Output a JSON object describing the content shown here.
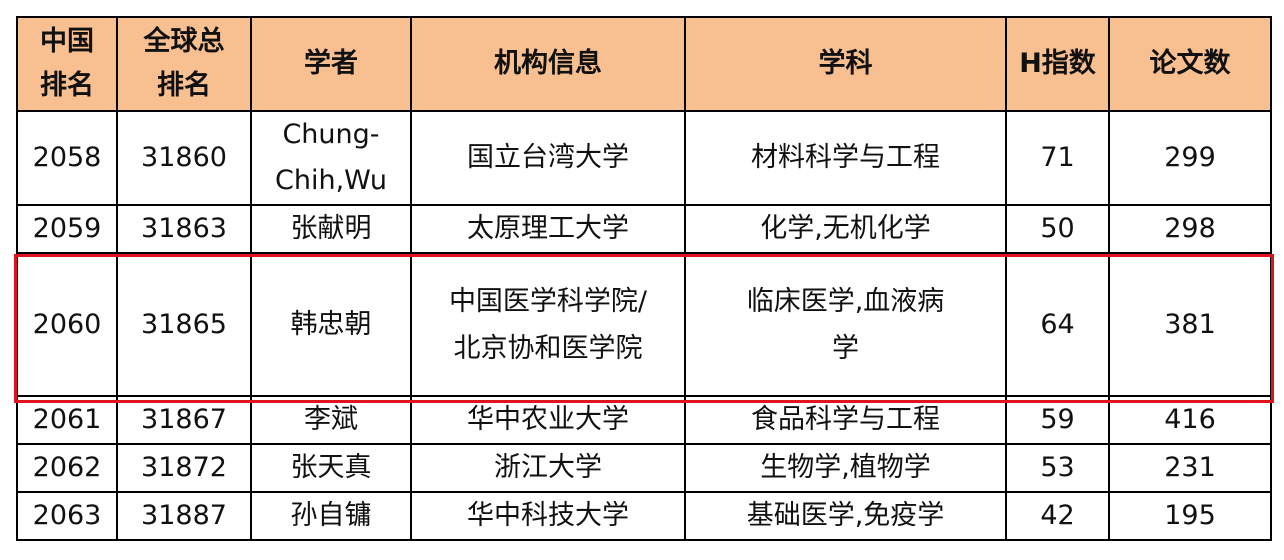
{
  "table": {
    "headers": [
      "中国排名",
      "全球总排名",
      "学者",
      "机构信息",
      "学科",
      "H指数",
      "论文数"
    ],
    "header_lines": [
      [
        "中国",
        "排名"
      ],
      [
        "全球总",
        "排名"
      ],
      [
        "学者"
      ],
      [
        "机构信息"
      ],
      [
        "学科"
      ],
      [
        "H指数"
      ],
      [
        "论文数"
      ]
    ],
    "rows": [
      [
        "2058",
        "31860",
        "Chung-Chih,Wu",
        "国立台湾大学",
        "材料科学与工程",
        "71",
        "299"
      ],
      [
        "2059",
        "31863",
        "张献明",
        "太原理工大学",
        "化学,无机化学",
        "50",
        "298"
      ],
      [
        "2060",
        "31865",
        "韩忠朝",
        "中国医学科学院/北京协和医学院",
        "临床医学,血液病学",
        "64",
        "381"
      ],
      [
        "2061",
        "31867",
        "李斌",
        "华中农业大学",
        "食品科学与工程",
        "59",
        "416"
      ],
      [
        "2062",
        "31872",
        "张天真",
        "浙江大学",
        "生物学,植物学",
        "53",
        "231"
      ],
      [
        "2063",
        "31887",
        "孙自镛",
        "华中科技大学",
        "基础医学,免疫学",
        "42",
        "195"
      ]
    ],
    "highlight_row": 2,
    "colors": {
      "header_bg": "#F8C091",
      "highlight": "#E0141E"
    }
  }
}
